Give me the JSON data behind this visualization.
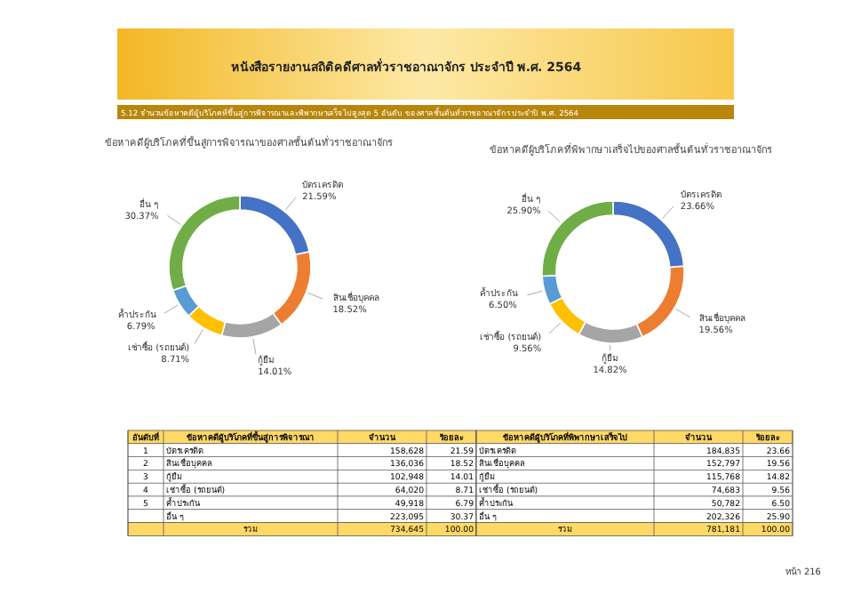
{
  "chart_data": [
    {
      "type": "donut",
      "title": "ข้อหาคดีผู้บริโภคที่ขึ้นสู่การพิจารณาของศาลชั้นต้นทั่วราชอาณาจักร",
      "annotations": [
        "หนังสือรายงานสถิติคดีศาลทั่วราชอาณาจักร ประจำปี พ.ศ. 2564",
        "5.12  จำนวนข้อหาคดีผู้บริโภคที่ขึ้นสู่การพิจารณาและพิพากษาเสร็จไปสูงสุด 5 อันดับ ของศาลชั้นต้นทั่วราชอาณาจักร ประจำปี พ.ศ. 2564",
        "หน้า 216",
        "อันดับที่",
        "ข้อหาคดีผู้บริโภคที่ขึ้นสู่การพิจารณา",
        "จำนวน",
        "ร้อยละ",
        "รวม",
        "100.00",
        "1",
        "2",
        "3",
        "4",
        "5",
        "21.59",
        "18.52",
        "14.01",
        "8.71",
        "6.79",
        "30.37",
        "158,628",
        "136,036",
        "102,948",
        "64,020",
        "49,918",
        "223,095"
      ],
      "categories": [
        "บัตรเครดิต",
        "สินเชื่อบุคคล",
        "กู้ยืม",
        "เช่าซื้อ (รถยนต์)",
        "ค้ำประกัน",
        "อื่น ๆ"
      ],
      "values": [
        21.59,
        18.52,
        14.01,
        8.71,
        6.79,
        30.37
      ],
      "value_labels": [
        "21.59%",
        "18.52%",
        "14.01%",
        "8.71%",
        "6.79%",
        "30.37%"
      ],
      "totals": [
        "734,645"
      ],
      "colors": [
        "#4472c4",
        "#ed7d31",
        "#a5a5a5",
        "#ffc000",
        "#5b9bd5",
        "#70ad47"
      ]
    },
    {
      "type": "donut",
      "title": "ข้อหาคดีผู้บริโภคที่พิพากษาเสร็จไปของศาลชั้นต้นทั่วราชอาณาจักร",
      "annotations": [
        "ข้อหาคดีผู้บริโภคที่พิพากษาเสร็จไป",
        "จำนวน",
        "ร้อยละ",
        "รวม",
        "100.00",
        "23.66",
        "19.56",
        "14.82",
        "9.56",
        "6.50",
        "25.90",
        "184,835",
        "152,797",
        "115,768",
        "74,683",
        "50,782",
        "202,326"
      ],
      "categories": [
        "บัตรเครดิต",
        "สินเชื่อบุคคล",
        "กู้ยืม",
        "เช่าซื้อ (รถยนต์)",
        "ค้ำประกัน",
        "อื่น ๆ"
      ],
      "values": [
        23.66,
        19.56,
        14.82,
        9.56,
        6.5,
        25.9
      ],
      "value_labels": [
        "23.66%",
        "19.56%",
        "14.82%",
        "9.56%",
        "6.50%",
        "25.90%"
      ],
      "totals": [
        "781,181"
      ],
      "colors": [
        "#4472c4",
        "#ed7d31",
        "#a5a5a5",
        "#ffc000",
        "#5b9bd5",
        "#70ad47"
      ]
    }
  ]
}
